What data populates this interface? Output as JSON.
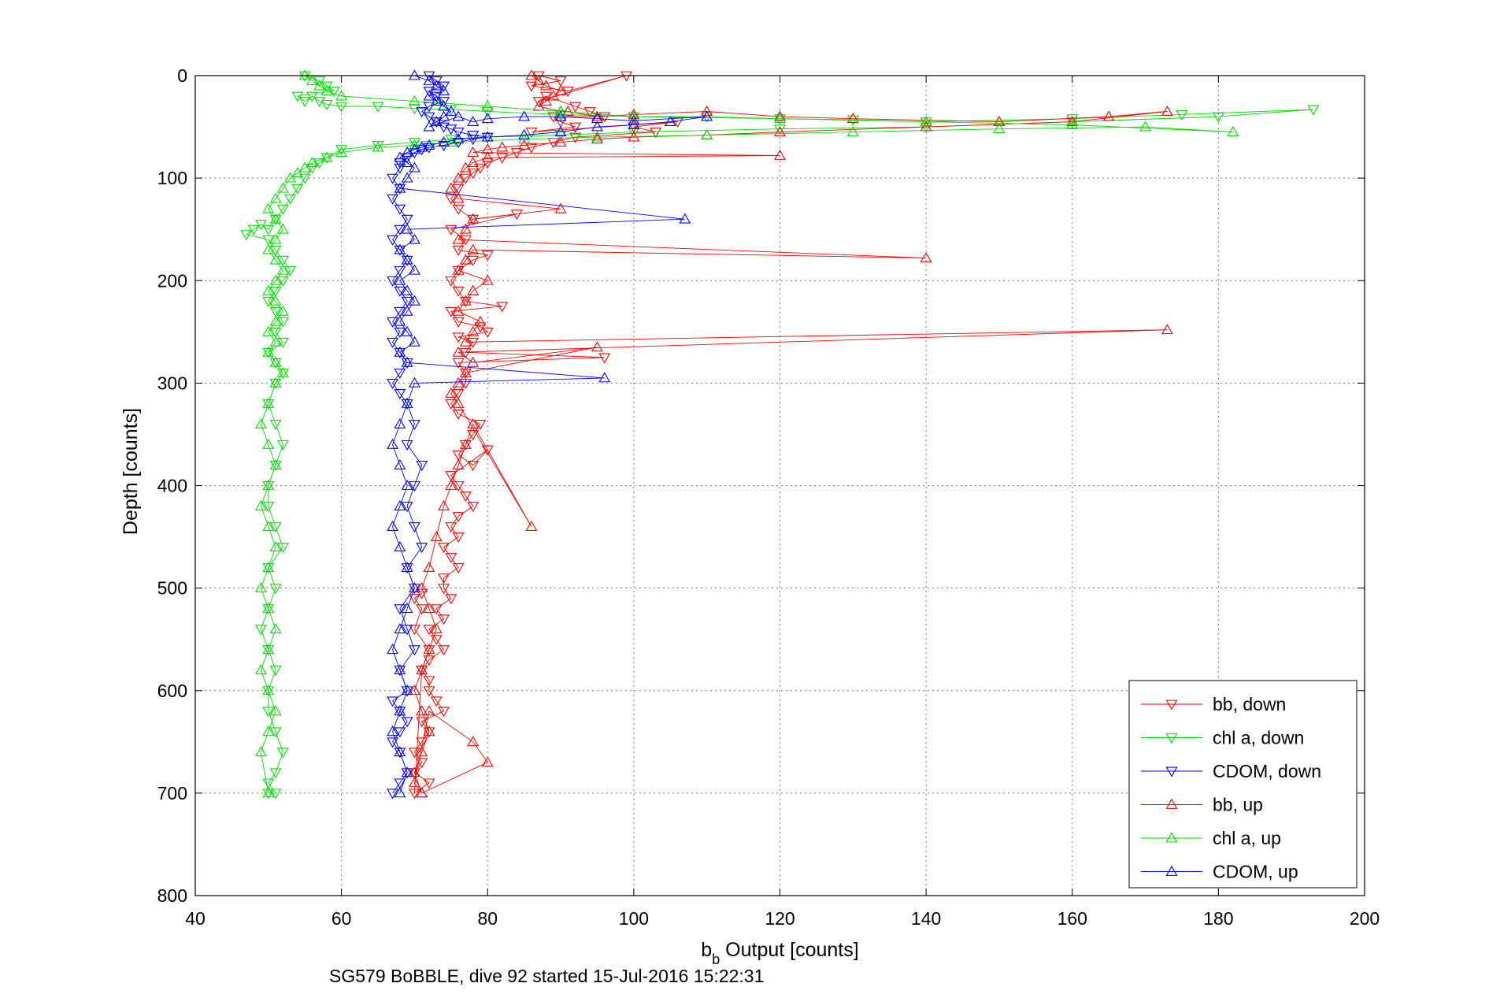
{
  "chart_data": {
    "type": "scatter",
    "xlabel_main": "b",
    "xlabel_sub": "b",
    "xlabel_rest": " Output [counts]",
    "ylabel": "Depth [counts]",
    "caption": "SG579 BoBBLE, dive 92 started 15-Jul-2016 15:22:31",
    "xlim": [
      40,
      200
    ],
    "ylim": [
      0,
      800
    ],
    "y_reversed": true,
    "grid": true,
    "legend_position": "bottom-right",
    "x_ticks": [
      40,
      60,
      80,
      100,
      120,
      140,
      160,
      180,
      200
    ],
    "y_ticks": [
      0,
      100,
      200,
      300,
      400,
      500,
      600,
      700,
      800
    ],
    "x_tick_labels": [
      "40",
      "60",
      "80",
      "100",
      "120",
      "140",
      "160",
      "180",
      "200"
    ],
    "y_tick_labels": [
      "0",
      "100",
      "200",
      "300",
      "400",
      "500",
      "600",
      "700",
      "800"
    ],
    "series": [
      {
        "name": "bb, down",
        "color": "#ff0000",
        "marker": "triangle-down",
        "x": [
          87,
          90,
          86,
          91,
          99,
          87,
          88,
          92,
          94,
          96,
          89,
          90,
          92,
          86,
          106,
          100,
          103,
          92,
          89,
          86,
          84,
          82,
          80,
          79,
          78,
          77,
          76,
          75,
          76,
          78,
          84,
          75,
          77,
          76,
          80,
          78,
          76,
          75,
          76,
          77,
          82,
          75,
          76,
          79,
          80,
          76,
          78,
          77,
          96,
          76,
          77,
          77,
          76,
          75,
          76,
          79,
          78,
          77,
          76,
          78,
          80,
          75,
          76,
          77,
          78,
          76,
          75,
          76,
          74,
          75,
          76,
          74,
          74,
          75,
          73,
          74,
          72,
          73,
          74,
          72,
          71,
          72,
          72,
          73,
          74,
          71,
          72,
          71,
          70,
          71,
          70,
          72,
          70,
          71,
          72,
          70,
          71,
          70,
          71
        ],
        "y": [
          0,
          5,
          10,
          15,
          0,
          25,
          20,
          30,
          35,
          40,
          40,
          45,
          50,
          55,
          45,
          50,
          55,
          60,
          65,
          70,
          75,
          80,
          85,
          90,
          95,
          100,
          110,
          120,
          130,
          140,
          135,
          150,
          160,
          170,
          175,
          180,
          190,
          200,
          210,
          220,
          225,
          230,
          240,
          245,
          250,
          255,
          260,
          270,
          275,
          280,
          290,
          300,
          310,
          320,
          330,
          340,
          350,
          360,
          370,
          380,
          365,
          390,
          400,
          410,
          420,
          430,
          440,
          450,
          460,
          470,
          480,
          490,
          500,
          510,
          520,
          530,
          540,
          550,
          560,
          570,
          580,
          590,
          600,
          610,
          620,
          630,
          640,
          650,
          660,
          670,
          680,
          690,
          700,
          580,
          560,
          540,
          520,
          510,
          505
        ]
      },
      {
        "name": "chl a, down",
        "color": "#00dd00",
        "marker": "triangle-down",
        "x": [
          55,
          57,
          58,
          59,
          54,
          55,
          56,
          57,
          58,
          60,
          65,
          70,
          75,
          80,
          90,
          100,
          110,
          120,
          130,
          140,
          160,
          175,
          193,
          180,
          160,
          140,
          120,
          100,
          90,
          80,
          75,
          70,
          65,
          60,
          58,
          57,
          56,
          55,
          54,
          53,
          52,
          51,
          50,
          49,
          48,
          47,
          50,
          51,
          52,
          53,
          52,
          51,
          50,
          51,
          52,
          51,
          52,
          50,
          51,
          52,
          51,
          50,
          51,
          52,
          51,
          50,
          50,
          51,
          52,
          50,
          51,
          50,
          49,
          50,
          51,
          50,
          50,
          51,
          52,
          51,
          50,
          51,
          50
        ],
        "y": [
          0,
          5,
          10,
          15,
          20,
          25,
          20,
          25,
          28,
          30,
          30,
          32,
          33,
          35,
          38,
          40,
          40,
          42,
          43,
          45,
          42,
          38,
          33,
          40,
          45,
          50,
          52,
          55,
          58,
          60,
          62,
          65,
          68,
          72,
          80,
          85,
          90,
          100,
          110,
          120,
          130,
          140,
          150,
          145,
          150,
          155,
          160,
          170,
          180,
          190,
          200,
          210,
          220,
          230,
          240,
          250,
          260,
          270,
          280,
          290,
          300,
          320,
          340,
          360,
          380,
          400,
          420,
          440,
          460,
          480,
          500,
          520,
          540,
          560,
          580,
          600,
          620,
          640,
          660,
          680,
          690,
          700,
          700
        ]
      },
      {
        "name": "CDOM, down",
        "color": "#0000ff",
        "marker": "triangle-down",
        "x": [
          72,
          73,
          74,
          72,
          73,
          74,
          72,
          71,
          72,
          73,
          74,
          75,
          76,
          78,
          80,
          78,
          76,
          74,
          72,
          71,
          70,
          69,
          68,
          68,
          67,
          68,
          67,
          68,
          69,
          68,
          67,
          68,
          69,
          68,
          67,
          68,
          69,
          68,
          67,
          68,
          67,
          68,
          69,
          68,
          67,
          68,
          69,
          70,
          69,
          71,
          70,
          69,
          70,
          71,
          69,
          70,
          68,
          69,
          70,
          68,
          69,
          67,
          68,
          69,
          68,
          67,
          68,
          69,
          68,
          67
        ],
        "y": [
          0,
          5,
          10,
          15,
          20,
          25,
          30,
          35,
          40,
          45,
          50,
          52,
          55,
          58,
          60,
          62,
          65,
          68,
          70,
          72,
          75,
          80,
          85,
          90,
          100,
          110,
          120,
          130,
          140,
          150,
          160,
          170,
          180,
          190,
          200,
          210,
          220,
          230,
          240,
          250,
          260,
          270,
          280,
          290,
          300,
          310,
          320,
          340,
          360,
          380,
          400,
          420,
          440,
          460,
          480,
          500,
          520,
          540,
          560,
          580,
          600,
          610,
          620,
          630,
          640,
          650,
          660,
          680,
          690,
          700
        ]
      },
      {
        "name": "bb, up",
        "color": "#ff0000",
        "marker": "triangle-up",
        "x": [
          86,
          87,
          88,
          90,
          89,
          88,
          87,
          90,
          91,
          95,
          100,
          110,
          120,
          130,
          150,
          165,
          173,
          160,
          140,
          120,
          110,
          100,
          95,
          90,
          85,
          82,
          80,
          78,
          120,
          80,
          78,
          77,
          76,
          75,
          76,
          90,
          78,
          77,
          76,
          140,
          78,
          77,
          76,
          80,
          78,
          77,
          76,
          79,
          78,
          77,
          173,
          76,
          78,
          95,
          77,
          76,
          75,
          76,
          86,
          78,
          77,
          76,
          75,
          74,
          73,
          72,
          71,
          72,
          73,
          72,
          71,
          70,
          71,
          72,
          71,
          70,
          71,
          80,
          78,
          72,
          70,
          71
        ],
        "y": [
          0,
          5,
          10,
          15,
          20,
          25,
          30,
          35,
          35,
          40,
          38,
          35,
          40,
          42,
          45,
          40,
          35,
          45,
          50,
          55,
          58,
          60,
          62,
          65,
          68,
          70,
          72,
          75,
          78,
          80,
          85,
          90,
          100,
          110,
          120,
          130,
          140,
          150,
          160,
          178,
          170,
          180,
          190,
          200,
          210,
          220,
          230,
          240,
          250,
          260,
          248,
          270,
          280,
          265,
          290,
          300,
          310,
          320,
          440,
          340,
          360,
          380,
          400,
          420,
          450,
          480,
          500,
          520,
          540,
          560,
          580,
          600,
          620,
          640,
          660,
          680,
          700,
          670,
          650,
          620,
          690,
          700
        ]
      },
      {
        "name": "chl a, up",
        "color": "#00dd00",
        "marker": "triangle-up",
        "x": [
          55,
          56,
          57,
          58,
          60,
          70,
          80,
          90,
          100,
          120,
          140,
          160,
          182,
          170,
          150,
          130,
          110,
          95,
          85,
          75,
          70,
          65,
          60,
          58,
          56,
          55,
          54,
          53,
          52,
          51,
          50,
          51,
          52,
          51,
          50,
          51,
          52,
          51,
          50,
          51,
          52,
          51,
          50,
          51,
          50,
          51,
          52,
          51,
          50,
          49,
          50,
          51,
          50,
          49,
          50,
          51,
          50,
          49,
          50,
          51,
          50,
          49,
          50,
          51,
          50,
          49,
          50
        ],
        "y": [
          0,
          5,
          10,
          15,
          20,
          25,
          30,
          35,
          40,
          42,
          45,
          48,
          55,
          50,
          52,
          55,
          58,
          60,
          62,
          65,
          68,
          70,
          75,
          80,
          85,
          90,
          95,
          100,
          110,
          120,
          130,
          140,
          150,
          160,
          170,
          180,
          190,
          200,
          210,
          220,
          230,
          240,
          250,
          260,
          270,
          280,
          290,
          300,
          320,
          340,
          360,
          380,
          400,
          420,
          440,
          460,
          480,
          500,
          520,
          540,
          560,
          580,
          600,
          620,
          640,
          660,
          700
        ]
      },
      {
        "name": "CDOM, up",
        "color": "#0000ff",
        "marker": "triangle-up",
        "x": [
          70,
          72,
          73,
          74,
          72,
          73,
          74,
          75,
          74,
          73,
          72,
          76,
          78,
          80,
          85,
          90,
          95,
          100,
          110,
          105,
          100,
          95,
          90,
          85,
          80,
          76,
          74,
          72,
          71,
          70,
          69,
          68,
          69,
          70,
          69,
          68,
          107,
          69,
          70,
          68,
          69,
          70,
          68,
          69,
          70,
          69,
          68,
          69,
          70,
          68,
          69,
          96,
          70,
          69,
          68,
          67,
          68,
          69,
          68,
          67,
          68,
          69,
          70,
          69,
          68,
          67,
          68,
          69,
          68,
          67,
          68,
          69,
          68
        ],
        "y": [
          0,
          5,
          10,
          15,
          20,
          25,
          30,
          35,
          40,
          45,
          50,
          40,
          45,
          42,
          40,
          40,
          42,
          44,
          40,
          45,
          48,
          50,
          55,
          58,
          60,
          62,
          65,
          68,
          70,
          72,
          75,
          80,
          85,
          90,
          100,
          110,
          140,
          150,
          160,
          170,
          180,
          190,
          200,
          210,
          220,
          230,
          240,
          250,
          260,
          270,
          280,
          295,
          300,
          320,
          340,
          360,
          380,
          400,
          420,
          440,
          460,
          480,
          500,
          520,
          540,
          560,
          580,
          600,
          620,
          640,
          660,
          680,
          700
        ]
      }
    ]
  }
}
